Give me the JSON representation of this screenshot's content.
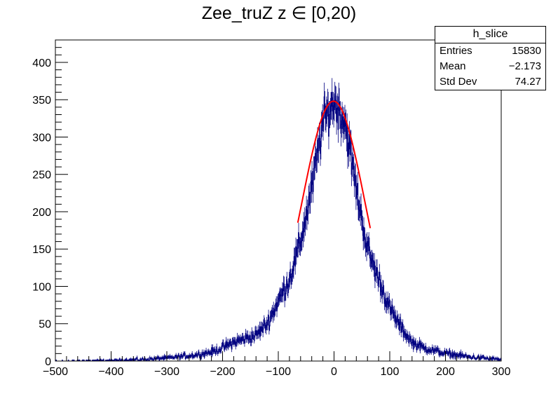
{
  "chart_data": {
    "type": "histogram",
    "title": "Zee_truZ z  ∈ [0,20)",
    "xlabel": "",
    "ylabel": "",
    "xlim": [
      -500,
      300
    ],
    "ylim": [
      0,
      430
    ],
    "x_ticks": [
      -500,
      -400,
      -300,
      -200,
      -100,
      0,
      100,
      200,
      300
    ],
    "y_ticks": [
      0,
      50,
      100,
      150,
      200,
      250,
      300,
      350,
      400
    ],
    "histogram_color": "#000080",
    "fit_color": "#ff0000",
    "histogram_envelope": [
      {
        "x": -500,
        "y": 0
      },
      {
        "x": -400,
        "y": 1
      },
      {
        "x": -350,
        "y": 2
      },
      {
        "x": -300,
        "y": 4
      },
      {
        "x": -250,
        "y": 8
      },
      {
        "x": -220,
        "y": 12
      },
      {
        "x": -200,
        "y": 18
      },
      {
        "x": -180,
        "y": 25
      },
      {
        "x": -160,
        "y": 30
      },
      {
        "x": -140,
        "y": 35
      },
      {
        "x": -120,
        "y": 50
      },
      {
        "x": -100,
        "y": 80
      },
      {
        "x": -80,
        "y": 110
      },
      {
        "x": -60,
        "y": 160
      },
      {
        "x": -40,
        "y": 230
      },
      {
        "x": -20,
        "y": 320
      },
      {
        "x": 0,
        "y": 348
      },
      {
        "x": 20,
        "y": 320
      },
      {
        "x": 40,
        "y": 230
      },
      {
        "x": 60,
        "y": 150
      },
      {
        "x": 80,
        "y": 110
      },
      {
        "x": 100,
        "y": 70
      },
      {
        "x": 120,
        "y": 45
      },
      {
        "x": 140,
        "y": 25
      },
      {
        "x": 160,
        "y": 18
      },
      {
        "x": 200,
        "y": 10
      },
      {
        "x": 250,
        "y": 5
      },
      {
        "x": 300,
        "y": 2
      }
    ],
    "fit": {
      "type": "gaus",
      "range": [
        -65,
        65
      ],
      "constant": 348,
      "mean": -1,
      "sigma": 57
    },
    "stats": {
      "name": "h_slice",
      "entries_label": "Entries",
      "entries": "15830",
      "mean_label": "Mean",
      "mean": "−2.173",
      "stddev_label": "Std Dev",
      "stddev": "74.27"
    }
  }
}
